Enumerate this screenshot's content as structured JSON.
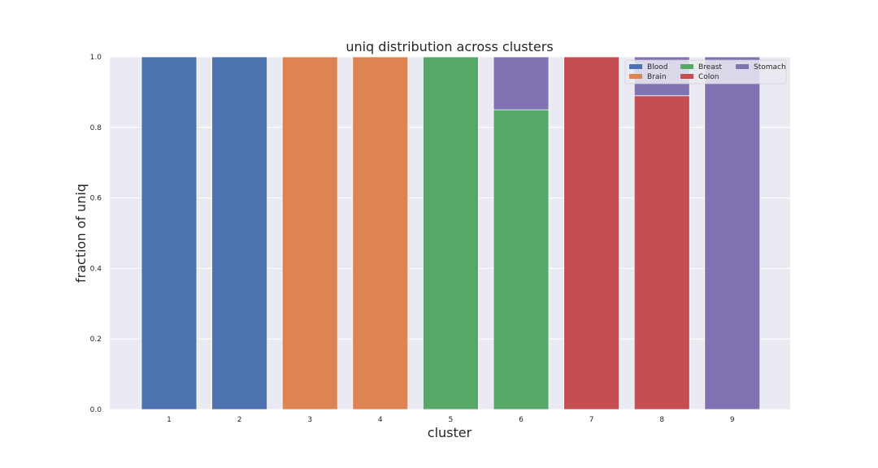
{
  "chart_data": {
    "type": "bar",
    "stacked": true,
    "title": "uniq distribution across clusters",
    "xlabel": "cluster",
    "ylabel": "fraction of uniq",
    "ylim": [
      0,
      1.0
    ],
    "yticks": [
      "0.0",
      "0.2",
      "0.4",
      "0.6",
      "0.8",
      "1.0"
    ],
    "categories": [
      "1",
      "2",
      "3",
      "4",
      "5",
      "6",
      "7",
      "8",
      "9"
    ],
    "grid": true,
    "legend_position": "top-right",
    "series": [
      {
        "name": "Blood",
        "color": "#4c72b0",
        "values": [
          1.0,
          1.0,
          0,
          0,
          0,
          0,
          0,
          0,
          0
        ]
      },
      {
        "name": "Brain",
        "color": "#dd8452",
        "values": [
          0,
          0,
          1.0,
          1.0,
          0,
          0,
          0,
          0,
          0
        ]
      },
      {
        "name": "Breast",
        "color": "#55a868",
        "values": [
          0,
          0,
          0,
          0,
          1.0,
          0.85,
          0,
          0,
          0
        ]
      },
      {
        "name": "Colon",
        "color": "#c44e52",
        "values": [
          0,
          0,
          0,
          0,
          0,
          0,
          1.0,
          0.89,
          0
        ]
      },
      {
        "name": "Stomach",
        "color": "#8172b3",
        "values": [
          0,
          0,
          0,
          0,
          0,
          0.15,
          0,
          0.11,
          1.0
        ]
      }
    ]
  }
}
